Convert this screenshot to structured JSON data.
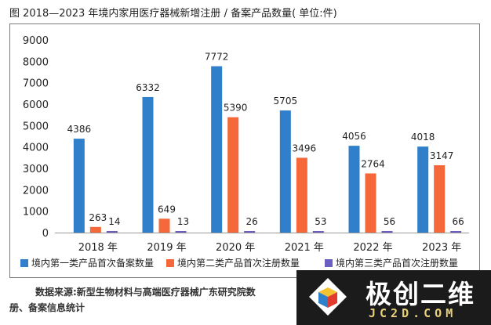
{
  "figure": {
    "title": "图   2018—2023 年境内家用医疗器械新增注册 / 备案产品数量( 单位:件)",
    "source_line1": "数据来源:新型生物材料与高端医疗器械广东研究院数",
    "source_line2": "册、备案信息统计"
  },
  "watermark": {
    "name": "极创二维",
    "url": "JC2D.COM"
  },
  "colors": {
    "series1": "#2f7fca",
    "series2": "#f4683a",
    "series3": "#6a5fc1",
    "axis": "#999999",
    "text": "#222222"
  },
  "chart_data": {
    "type": "bar",
    "title": "2018—2023 年境内家用医疗器械新增注册 / 备案产品数量( 单位:件)",
    "categories": [
      "2018 年",
      "2019 年",
      "2020 年",
      "2021 年",
      "2022 年",
      "2023 年"
    ],
    "series": [
      {
        "name": "境内第一类产品首次备案数量",
        "values": [
          4386,
          6332,
          7772,
          5705,
          4056,
          4018
        ]
      },
      {
        "name": "境内第二类产品首次注册数量",
        "values": [
          263,
          649,
          5390,
          3496,
          2764,
          3147
        ]
      },
      {
        "name": "境内第三类产品首次注册数量",
        "values": [
          14,
          13,
          26,
          53,
          56,
          66
        ]
      }
    ],
    "y_ticks": [
      "0",
      "1000",
      "2000",
      "3000",
      "4000",
      "5000",
      "6000",
      "7000",
      "8000",
      "9000"
    ],
    "ylim": [
      0,
      9000
    ],
    "xlabel": "",
    "ylabel": "",
    "grid": false,
    "legend_position": "bottom"
  }
}
